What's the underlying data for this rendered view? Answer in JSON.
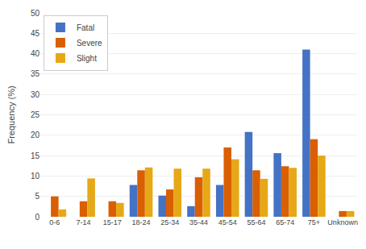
{
  "chart_data": {
    "type": "bar",
    "ylabel": "Frequency (%)",
    "categories": [
      "0-6",
      "7-14",
      "15-17",
      "18-24",
      "25-34",
      "35-44",
      "45-54",
      "55-64",
      "65-74",
      "75+",
      "Unknown"
    ],
    "series": [
      {
        "name": "Fatal",
        "color": "#4472C4",
        "values": [
          0,
          0,
          0,
          7.8,
          5.2,
          2.6,
          7.8,
          20.8,
          15.6,
          41.0,
          0
        ]
      },
      {
        "name": "Severe",
        "color": "#D95F02",
        "values": [
          5.0,
          3.8,
          3.8,
          11.4,
          6.7,
          9.7,
          17.0,
          11.4,
          12.4,
          19.0,
          1.4
        ]
      },
      {
        "name": "Slight",
        "color": "#E6A817",
        "values": [
          1.8,
          9.4,
          3.4,
          12.1,
          11.8,
          11.8,
          14.1,
          9.3,
          12.0,
          15.0,
          1.4
        ]
      }
    ],
    "ylim": [
      0,
      50
    ],
    "yticks": [
      0,
      5,
      10,
      15,
      20,
      25,
      30,
      35,
      40,
      45,
      50
    ],
    "grid": true,
    "legend": "upper left"
  }
}
